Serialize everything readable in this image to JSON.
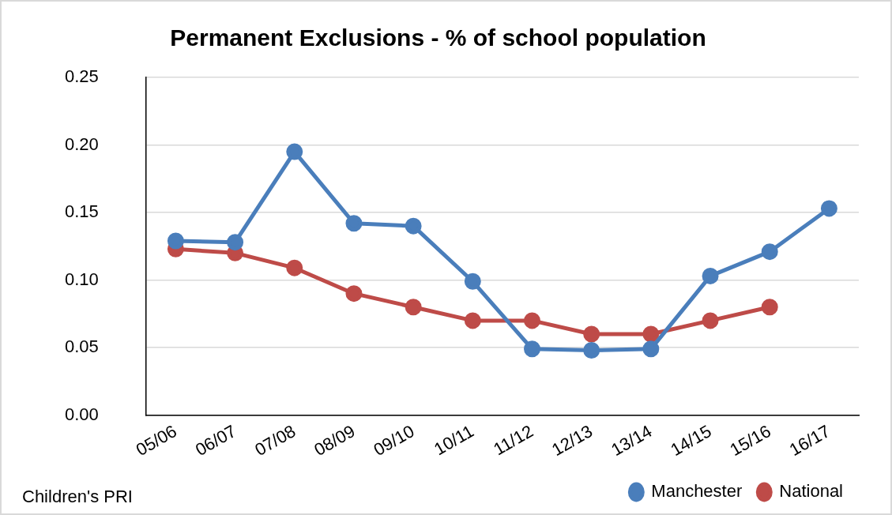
{
  "chart_data": {
    "type": "line",
    "title": "Permanent Exclusions - % of school population",
    "categories": [
      "05/06",
      "06/07",
      "07/08",
      "08/09",
      "09/10",
      "10/11",
      "11/12",
      "12/13",
      "13/14",
      "14/15",
      "15/16",
      "16/17"
    ],
    "series": [
      {
        "name": "Manchester",
        "color": "#4a7ebb",
        "values": [
          0.129,
          0.128,
          0.195,
          0.142,
          0.14,
          0.099,
          0.049,
          0.048,
          0.049,
          0.103,
          0.121,
          0.153
        ]
      },
      {
        "name": "National",
        "color": "#be4b48",
        "values": [
          0.123,
          0.12,
          0.109,
          0.09,
          0.08,
          0.07,
          0.07,
          0.06,
          0.06,
          0.07,
          0.08,
          null
        ]
      }
    ],
    "ylim": [
      0,
      0.25
    ],
    "yticks": [
      {
        "value": 0,
        "label": "0.00"
      },
      {
        "value": 0.05,
        "label": "0.05"
      },
      {
        "value": 0.1,
        "label": "0.10"
      },
      {
        "value": 0.15,
        "label": "0.15"
      },
      {
        "value": 0.2,
        "label": "0.20"
      },
      {
        "value": 0.25,
        "label": "0.25"
      }
    ],
    "grid": "y",
    "legend": "bottom right",
    "marker": "circle",
    "line_style": "solid",
    "annotations": [
      "Children's PRI"
    ]
  }
}
